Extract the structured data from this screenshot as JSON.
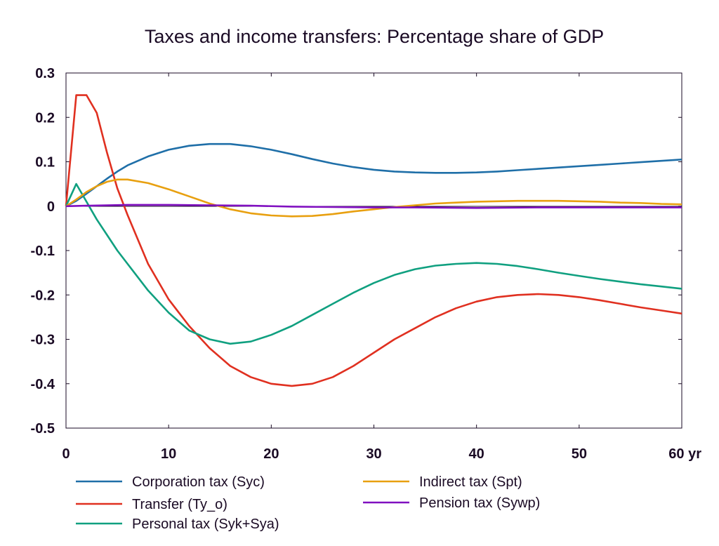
{
  "chart_data": {
    "type": "line",
    "title": "Taxes and income transfers: Percentage share of GDP",
    "xlabel": "",
    "ylabel": "",
    "x_unit_label": "yr",
    "xlim": [
      0,
      60
    ],
    "ylim": [
      -0.5,
      0.3
    ],
    "x_ticks": [
      0,
      10,
      20,
      30,
      40,
      50,
      60
    ],
    "x_tick_labels": [
      "0",
      "10",
      "20",
      "30",
      "40",
      "50",
      "60 yr"
    ],
    "y_ticks": [
      0.3,
      0.2,
      0.1,
      0,
      -0.1,
      -0.2,
      -0.3,
      -0.4,
      -0.5
    ],
    "y_tick_labels": [
      "0.3",
      "0.2",
      "0.1",
      "0",
      "-0.1",
      "-0.2",
      "-0.3",
      "-0.4",
      "-0.5"
    ],
    "grid": false,
    "legend_position": "bottom",
    "series": [
      {
        "name": "Corporation tax (Syc)",
        "color": "#1f6fa8",
        "points": [
          [
            0,
            0
          ],
          [
            1,
            0.012
          ],
          [
            2,
            0.028
          ],
          [
            3,
            0.045
          ],
          [
            4,
            0.062
          ],
          [
            5,
            0.078
          ],
          [
            6,
            0.092
          ],
          [
            8,
            0.112
          ],
          [
            10,
            0.127
          ],
          [
            12,
            0.136
          ],
          [
            14,
            0.14
          ],
          [
            16,
            0.14
          ],
          [
            18,
            0.135
          ],
          [
            20,
            0.127
          ],
          [
            22,
            0.117
          ],
          [
            24,
            0.106
          ],
          [
            26,
            0.096
          ],
          [
            28,
            0.088
          ],
          [
            30,
            0.082
          ],
          [
            32,
            0.078
          ],
          [
            34,
            0.076
          ],
          [
            36,
            0.075
          ],
          [
            38,
            0.075
          ],
          [
            40,
            0.076
          ],
          [
            42,
            0.078
          ],
          [
            44,
            0.081
          ],
          [
            46,
            0.084
          ],
          [
            48,
            0.087
          ],
          [
            50,
            0.09
          ],
          [
            52,
            0.093
          ],
          [
            54,
            0.096
          ],
          [
            56,
            0.099
          ],
          [
            58,
            0.102
          ],
          [
            60,
            0.105
          ]
        ]
      },
      {
        "name": "Transfer (Ty_o)",
        "color": "#e03020",
        "points": [
          [
            0,
            0
          ],
          [
            1,
            0.25
          ],
          [
            2,
            0.25
          ],
          [
            3,
            0.21
          ],
          [
            4,
            0.12
          ],
          [
            5,
            0.04
          ],
          [
            6,
            -0.02
          ],
          [
            8,
            -0.13
          ],
          [
            10,
            -0.21
          ],
          [
            12,
            -0.27
          ],
          [
            14,
            -0.32
          ],
          [
            16,
            -0.36
          ],
          [
            18,
            -0.385
          ],
          [
            20,
            -0.4
          ],
          [
            22,
            -0.405
          ],
          [
            24,
            -0.4
          ],
          [
            26,
            -0.385
          ],
          [
            28,
            -0.36
          ],
          [
            30,
            -0.33
          ],
          [
            32,
            -0.3
          ],
          [
            34,
            -0.275
          ],
          [
            36,
            -0.25
          ],
          [
            38,
            -0.23
          ],
          [
            40,
            -0.215
          ],
          [
            42,
            -0.205
          ],
          [
            44,
            -0.2
          ],
          [
            46,
            -0.198
          ],
          [
            48,
            -0.2
          ],
          [
            50,
            -0.205
          ],
          [
            52,
            -0.212
          ],
          [
            54,
            -0.22
          ],
          [
            56,
            -0.228
          ],
          [
            58,
            -0.235
          ],
          [
            60,
            -0.242
          ]
        ]
      },
      {
        "name": "Personal tax (Syk+Sya)",
        "color": "#10a080",
        "points": [
          [
            0,
            0
          ],
          [
            1,
            0.05
          ],
          [
            2,
            0.01
          ],
          [
            3,
            -0.03
          ],
          [
            4,
            -0.065
          ],
          [
            5,
            -0.1
          ],
          [
            6,
            -0.13
          ],
          [
            8,
            -0.19
          ],
          [
            10,
            -0.24
          ],
          [
            12,
            -0.28
          ],
          [
            14,
            -0.3
          ],
          [
            16,
            -0.31
          ],
          [
            18,
            -0.305
          ],
          [
            20,
            -0.29
          ],
          [
            22,
            -0.27
          ],
          [
            24,
            -0.245
          ],
          [
            26,
            -0.22
          ],
          [
            28,
            -0.195
          ],
          [
            30,
            -0.173
          ],
          [
            32,
            -0.155
          ],
          [
            34,
            -0.142
          ],
          [
            36,
            -0.134
          ],
          [
            38,
            -0.13
          ],
          [
            40,
            -0.128
          ],
          [
            42,
            -0.13
          ],
          [
            44,
            -0.135
          ],
          [
            46,
            -0.142
          ],
          [
            48,
            -0.15
          ],
          [
            50,
            -0.157
          ],
          [
            52,
            -0.164
          ],
          [
            54,
            -0.17
          ],
          [
            56,
            -0.176
          ],
          [
            58,
            -0.181
          ],
          [
            60,
            -0.186
          ]
        ]
      },
      {
        "name": "Indirect tax (Spt)",
        "color": "#e8a010",
        "points": [
          [
            0,
            0
          ],
          [
            1,
            0.015
          ],
          [
            2,
            0.032
          ],
          [
            3,
            0.045
          ],
          [
            4,
            0.055
          ],
          [
            5,
            0.06
          ],
          [
            6,
            0.06
          ],
          [
            8,
            0.052
          ],
          [
            10,
            0.038
          ],
          [
            12,
            0.022
          ],
          [
            14,
            0.006
          ],
          [
            16,
            -0.007
          ],
          [
            18,
            -0.016
          ],
          [
            20,
            -0.021
          ],
          [
            22,
            -0.023
          ],
          [
            24,
            -0.022
          ],
          [
            26,
            -0.018
          ],
          [
            28,
            -0.012
          ],
          [
            30,
            -0.007
          ],
          [
            32,
            -0.002
          ],
          [
            34,
            0.002
          ],
          [
            36,
            0.006
          ],
          [
            38,
            0.008
          ],
          [
            40,
            0.01
          ],
          [
            42,
            0.011
          ],
          [
            44,
            0.012
          ],
          [
            46,
            0.012
          ],
          [
            48,
            0.012
          ],
          [
            50,
            0.011
          ],
          [
            52,
            0.01
          ],
          [
            54,
            0.008
          ],
          [
            56,
            0.007
          ],
          [
            58,
            0.005
          ],
          [
            60,
            0.004
          ]
        ]
      },
      {
        "name": "Pension tax (Sywp)",
        "color": "#8010c0",
        "points": [
          [
            0,
            0
          ],
          [
            2,
            0.001
          ],
          [
            4,
            0.002
          ],
          [
            6,
            0.003
          ],
          [
            10,
            0.003
          ],
          [
            14,
            0.002
          ],
          [
            18,
            0.001
          ],
          [
            22,
            -0.001
          ],
          [
            26,
            -0.002
          ],
          [
            30,
            -0.003
          ],
          [
            34,
            -0.003
          ],
          [
            40,
            -0.004
          ],
          [
            46,
            -0.003
          ],
          [
            50,
            -0.003
          ],
          [
            55,
            -0.003
          ],
          [
            60,
            -0.003
          ]
        ]
      }
    ]
  }
}
